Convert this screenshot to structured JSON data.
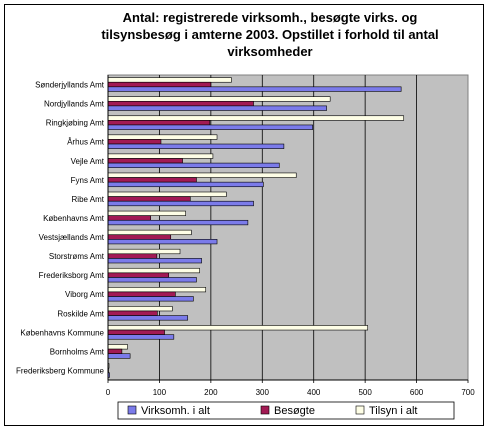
{
  "chart_data": {
    "type": "bar",
    "orientation": "horizontal",
    "title_lines": [
      "Antal: registrerede virksomh., besøgte virks. og",
      "tilsynsbesøg i amterne 2003. Opstillet i forhold til antal",
      "virksomheder"
    ],
    "categories": [
      "Sønderjyllands Amt",
      "Nordjyllands Amt",
      "Ringkjøbing Amt",
      "Århus Amt",
      "Vejle Amt",
      "Fyns Amt",
      "Ribe Amt",
      "Københavns Amt",
      "Vestsjællands Amt",
      "Storstrøms Amt",
      "Frederiksborg Amt",
      "Viborg Amt",
      "Roskilde Amt",
      "Københavns Kommune",
      "Bornholms Amt",
      "Frederiksberg Kommune"
    ],
    "series": [
      {
        "name": "Virksomh. i alt",
        "color": "#7b7bea",
        "values": [
          570,
          425,
          398,
          342,
          333,
          302,
          283,
          272,
          212,
          182,
          172,
          166,
          155,
          128,
          43,
          3
        ]
      },
      {
        "name": "Besøgte",
        "color": "#a21a54",
        "values": [
          200,
          283,
          198,
          103,
          145,
          172,
          160,
          83,
          122,
          95,
          118,
          131,
          96,
          110,
          27,
          1
        ]
      },
      {
        "name": "Tilsyn i alt",
        "color": "#fefee6",
        "values": [
          240,
          432,
          575,
          212,
          204,
          366,
          230,
          151,
          162,
          140,
          178,
          190,
          125,
          505,
          38,
          2
        ]
      }
    ],
    "x_ticks": [
      "0",
      "100",
      "200",
      "300",
      "400",
      "500",
      "600",
      "700"
    ],
    "xlim": [
      0,
      700
    ],
    "plot_background": "#c0c0c0",
    "gridlines": "vertical",
    "legend_position": "bottom"
  }
}
